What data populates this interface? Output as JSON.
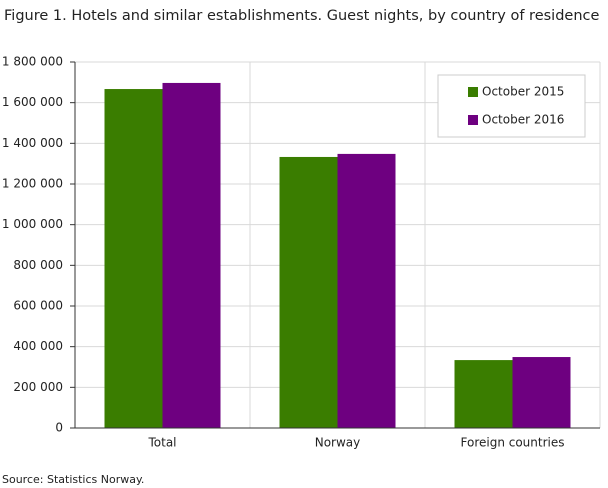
{
  "chart_data": {
    "type": "bar",
    "title": "Figure 1. Hotels and similar establishments. Guest nights, by country of residence",
    "categories": [
      "Total",
      "Norway",
      "Foreign countries"
    ],
    "series": [
      {
        "name": "October 2015",
        "color": "#3a7d00",
        "values": [
          1667000,
          1333000,
          334000
        ]
      },
      {
        "name": "October 2016",
        "color": "#6e0080",
        "values": [
          1697000,
          1348000,
          349000
        ]
      }
    ],
    "ylim": [
      0,
      1800000
    ],
    "yticks": [
      0,
      {
        "value": 200000,
        "label": "200 000"
      },
      {
        "value": 400000,
        "label": "400 000"
      },
      {
        "value": 600000,
        "label": "600 000"
      },
      {
        "value": 800000,
        "label": "800 000"
      },
      {
        "value": 1000000,
        "label": "1 000 000"
      },
      {
        "value": 1200000,
        "label": "1 200 000"
      },
      {
        "value": 1400000,
        "label": "1 400 000"
      },
      {
        "value": 1600000,
        "label": "1 600 000"
      },
      {
        "value": 1800000,
        "label": "1 800 000"
      }
    ],
    "grid": true,
    "legend": "upper right",
    "source": "Source: Statistics Norway."
  }
}
